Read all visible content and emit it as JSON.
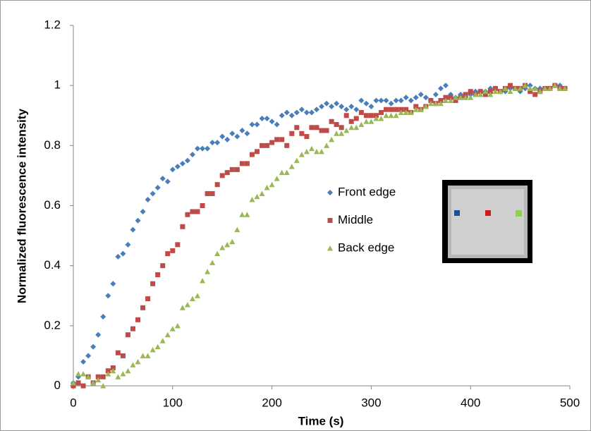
{
  "chart_data": {
    "type": "scatter",
    "x_label": "Time (s)",
    "y_label": "Normalized fluorescence intensity",
    "x": [
      0,
      5,
      10,
      15,
      20,
      25,
      30,
      35,
      40,
      45,
      50,
      55,
      60,
      65,
      70,
      75,
      80,
      85,
      90,
      95,
      100,
      105,
      110,
      115,
      120,
      125,
      130,
      135,
      140,
      145,
      150,
      155,
      160,
      165,
      170,
      175,
      180,
      185,
      190,
      195,
      200,
      205,
      210,
      215,
      220,
      225,
      230,
      235,
      240,
      245,
      250,
      255,
      260,
      265,
      270,
      275,
      280,
      285,
      290,
      295,
      300,
      305,
      310,
      315,
      320,
      325,
      330,
      335,
      340,
      345,
      350,
      355,
      360,
      365,
      370,
      375,
      380,
      385,
      390,
      395,
      400,
      405,
      410,
      415,
      420,
      425,
      430,
      435,
      440,
      445,
      450,
      455,
      460,
      465,
      470,
      475,
      480,
      485,
      490,
      495
    ],
    "series": [
      {
        "name": "Front edge",
        "color": "#4a7ebb",
        "marker": "diamond",
        "values": [
          0.01,
          0.03,
          0.08,
          0.1,
          0.13,
          0.17,
          0.23,
          0.3,
          0.34,
          0.43,
          0.44,
          0.47,
          0.52,
          0.55,
          0.58,
          0.62,
          0.64,
          0.66,
          0.69,
          0.68,
          0.72,
          0.73,
          0.74,
          0.75,
          0.77,
          0.79,
          0.79,
          0.79,
          0.81,
          0.81,
          0.83,
          0.82,
          0.84,
          0.83,
          0.85,
          0.84,
          0.87,
          0.87,
          0.89,
          0.89,
          0.88,
          0.87,
          0.9,
          0.91,
          0.9,
          0.91,
          0.92,
          0.91,
          0.91,
          0.92,
          0.93,
          0.94,
          0.93,
          0.94,
          0.93,
          0.92,
          0.93,
          0.92,
          0.95,
          0.94,
          0.93,
          0.95,
          0.95,
          0.95,
          0.94,
          0.95,
          0.95,
          0.96,
          0.95,
          0.96,
          0.97,
          0.96,
          0.95,
          0.97,
          0.99,
          1.0,
          0.97,
          0.96,
          0.97,
          0.96,
          0.97,
          0.98,
          0.98,
          0.98,
          0.99,
          0.99,
          0.98,
          0.98,
          0.99,
          0.99,
          0.98,
          0.99,
          1.0,
          0.99,
          0.99,
          0.99,
          0.99,
          1.0,
          1.0,
          0.99
        ]
      },
      {
        "name": "Middle",
        "color": "#be4b48",
        "marker": "square",
        "values": [
          0,
          0.01,
          0,
          0.03,
          0.01,
          0.03,
          0.03,
          0.05,
          0.06,
          0.11,
          0.1,
          0.17,
          0.19,
          0.22,
          0.26,
          0.29,
          0.34,
          0.37,
          0.4,
          0.44,
          0.45,
          0.47,
          0.53,
          0.57,
          0.58,
          0.58,
          0.6,
          0.64,
          0.64,
          0.67,
          0.7,
          0.71,
          0.72,
          0.72,
          0.74,
          0.74,
          0.77,
          0.78,
          0.8,
          0.8,
          0.81,
          0.82,
          0.82,
          0.8,
          0.84,
          0.86,
          0.84,
          0.83,
          0.86,
          0.86,
          0.85,
          0.85,
          0.88,
          0.87,
          0.86,
          0.9,
          0.88,
          0.89,
          0.91,
          0.9,
          0.9,
          0.9,
          0.91,
          0.92,
          0.92,
          0.92,
          0.92,
          0.92,
          0.91,
          0.93,
          0.92,
          0.93,
          0.95,
          0.94,
          0.95,
          0.96,
          0.96,
          0.95,
          0.96,
          0.97,
          0.98,
          0.97,
          0.98,
          0.97,
          0.98,
          0.99,
          0.98,
          0.99,
          1.0,
          0.99,
          0.99,
          1.0,
          0.98,
          0.97,
          0.98,
          0.99,
          0.99,
          1.0,
          0.99,
          0.99
        ]
      },
      {
        "name": "Back edge",
        "color": "#98b954",
        "marker": "triangle",
        "values": [
          0.01,
          0.04,
          0.04,
          0.03,
          0.01,
          0.02,
          0,
          0.04,
          0.05,
          0.03,
          0.04,
          0.05,
          0.07,
          0.08,
          0.1,
          0.1,
          0.12,
          0.13,
          0.15,
          0.17,
          0.19,
          0.2,
          0.26,
          0.27,
          0.29,
          0.3,
          0.35,
          0.38,
          0.41,
          0.44,
          0.46,
          0.47,
          0.48,
          0.52,
          0.57,
          0.57,
          0.62,
          0.63,
          0.64,
          0.66,
          0.67,
          0.69,
          0.71,
          0.71,
          0.73,
          0.75,
          0.77,
          0.78,
          0.79,
          0.78,
          0.78,
          0.8,
          0.82,
          0.84,
          0.84,
          0.85,
          0.86,
          0.86,
          0.87,
          0.88,
          0.88,
          0.89,
          0.89,
          0.9,
          0.9,
          0.9,
          0.91,
          0.91,
          0.91,
          0.92,
          0.92,
          0.93,
          0.94,
          0.94,
          0.94,
          0.95,
          0.95,
          0.96,
          0.96,
          0.96,
          0.96,
          0.97,
          0.97,
          0.98,
          0.97,
          0.98,
          0.98,
          0.99,
          0.98,
          0.99,
          0.99,
          1.0,
          0.99,
          0.99,
          0.98,
          0.99,
          0.99,
          1.0,
          0.99,
          0.99
        ]
      }
    ],
    "xlim": [
      0,
      500
    ],
    "xticks": [
      0,
      100,
      200,
      300,
      400,
      500
    ],
    "ylim": [
      0,
      1.2
    ],
    "yticks": [
      0,
      0.2,
      0.4,
      0.6,
      0.8,
      1,
      1.2
    ],
    "grid": false,
    "legend": "center-right"
  }
}
